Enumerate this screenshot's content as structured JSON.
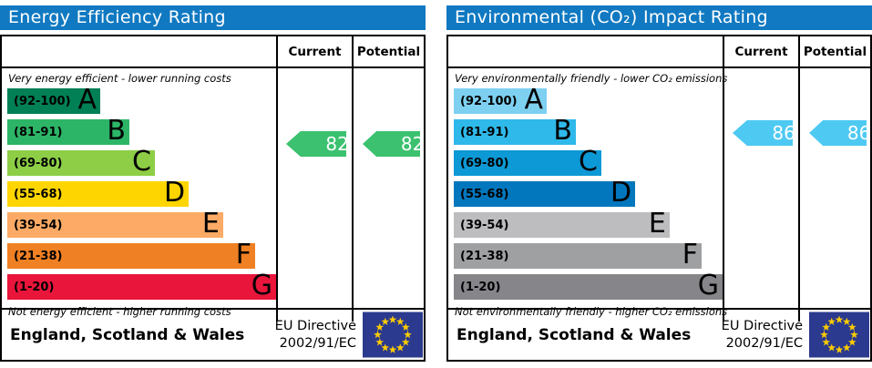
{
  "colors": {
    "header_bg": "#1079c1",
    "table_border": "#000000",
    "flag_bg": "#2b3a8e",
    "flag_star": "#ffcc00"
  },
  "chart_data": [
    {
      "type": "bar",
      "title": "Energy Efficiency Rating",
      "columns": {
        "current": "Current",
        "potential": "Potential"
      },
      "top_caption": "Very energy efficient - lower running costs",
      "bottom_caption": "Not energy efficient - higher running costs",
      "bands": [
        {
          "range": "(92-100)",
          "letter": "A",
          "color": "#008054",
          "width_pct": 34.6
        },
        {
          "range": "(81-91)",
          "letter": "B",
          "color": "#2db567",
          "width_pct": 45.4
        },
        {
          "range": "(69-80)",
          "letter": "C",
          "color": "#8dce46",
          "width_pct": 54.9
        },
        {
          "range": "(55-68)",
          "letter": "D",
          "color": "#ffd500",
          "width_pct": 67.5
        },
        {
          "range": "(39-54)",
          "letter": "E",
          "color": "#fcaa65",
          "width_pct": 80.3
        },
        {
          "range": "(21-38)",
          "letter": "F",
          "color": "#ef8023",
          "width_pct": 92.2
        },
        {
          "range": "(1-20)",
          "letter": "G",
          "color": "#e9153b",
          "width_pct": 100
        }
      ],
      "scale_range": [
        1,
        100
      ],
      "current": 82,
      "potential": 82,
      "arrow_color": "#3bc16f",
      "footer": {
        "region": "England, Scotland & Wales",
        "directive_line1": "EU Directive",
        "directive_line2": "2002/91/EC"
      }
    },
    {
      "type": "bar",
      "title": "Environmental (CO₂) Impact Rating",
      "columns": {
        "current": "Current",
        "potential": "Potential"
      },
      "top_caption": "Very environmentally friendly - lower CO₂ emissions",
      "bottom_caption": "Not environmentally friendly - higher CO₂ emissions",
      "bands": [
        {
          "range": "(92-100)",
          "letter": "A",
          "color": "#7ed0f1",
          "width_pct": 34.6
        },
        {
          "range": "(81-91)",
          "letter": "B",
          "color": "#2fb9ea",
          "width_pct": 45.4
        },
        {
          "range": "(69-80)",
          "letter": "C",
          "color": "#0d99d6",
          "width_pct": 54.9
        },
        {
          "range": "(55-68)",
          "letter": "D",
          "color": "#0377bd",
          "width_pct": 67.5
        },
        {
          "range": "(39-54)",
          "letter": "E",
          "color": "#bdbdbf",
          "width_pct": 80.3
        },
        {
          "range": "(21-38)",
          "letter": "F",
          "color": "#9fa0a2",
          "width_pct": 92.2
        },
        {
          "range": "(1-20)",
          "letter": "G",
          "color": "#86868a",
          "width_pct": 100
        }
      ],
      "scale_range": [
        1,
        100
      ],
      "current": 86,
      "potential": 86,
      "arrow_color": "#4ec9f2",
      "footer": {
        "region": "England, Scotland & Wales",
        "directive_line1": "EU Directive",
        "directive_line2": "2002/91/EC"
      }
    }
  ]
}
